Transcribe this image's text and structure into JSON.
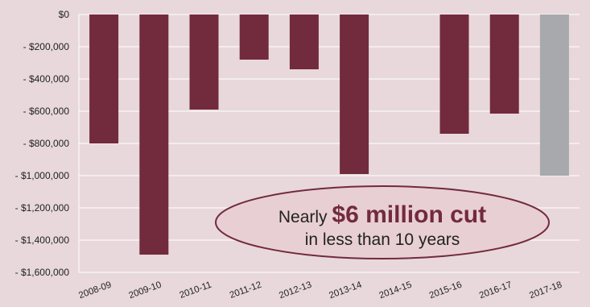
{
  "chart_data": {
    "type": "bar",
    "categories": [
      "2008-09",
      "2009-10",
      "2010-11",
      "2011-12",
      "2012-13",
      "2013-14",
      "2014-15",
      "2015-16",
      "2016-17",
      "2017-18"
    ],
    "values": [
      -800000,
      -1490000,
      -590000,
      -280000,
      -340000,
      -990000,
      0,
      -740000,
      -615000,
      -1000000
    ],
    "ylim": [
      -1600000,
      0
    ],
    "y_tick_values": [
      0,
      -200000,
      -400000,
      -600000,
      -800000,
      -1000000,
      -1200000,
      -1400000,
      -1600000
    ],
    "y_tick_labels": [
      "$0",
      "- $200,000",
      "- $400,000",
      "- $600,000",
      "- $800,000",
      "- $1,000,000",
      "- $1,200,000",
      "- $1,400,000",
      "- $1,600,000"
    ],
    "grid": true,
    "title": "",
    "xlabel": "",
    "ylabel": "",
    "colors": {
      "bar": "#722a3d",
      "bar_highlight": "#a7a9ac",
      "grid": "#ffffff",
      "background": "#e8d8db"
    },
    "highlight_category": "2017-18",
    "annotation": {
      "prefix": "Nearly ",
      "emphasis": "$6 million cut",
      "line2": "in less than 10 years",
      "text_color": "#222222",
      "emphasis_color": "#722a3d",
      "fill": "#e8cfd3",
      "stroke": "#722a3d"
    }
  }
}
